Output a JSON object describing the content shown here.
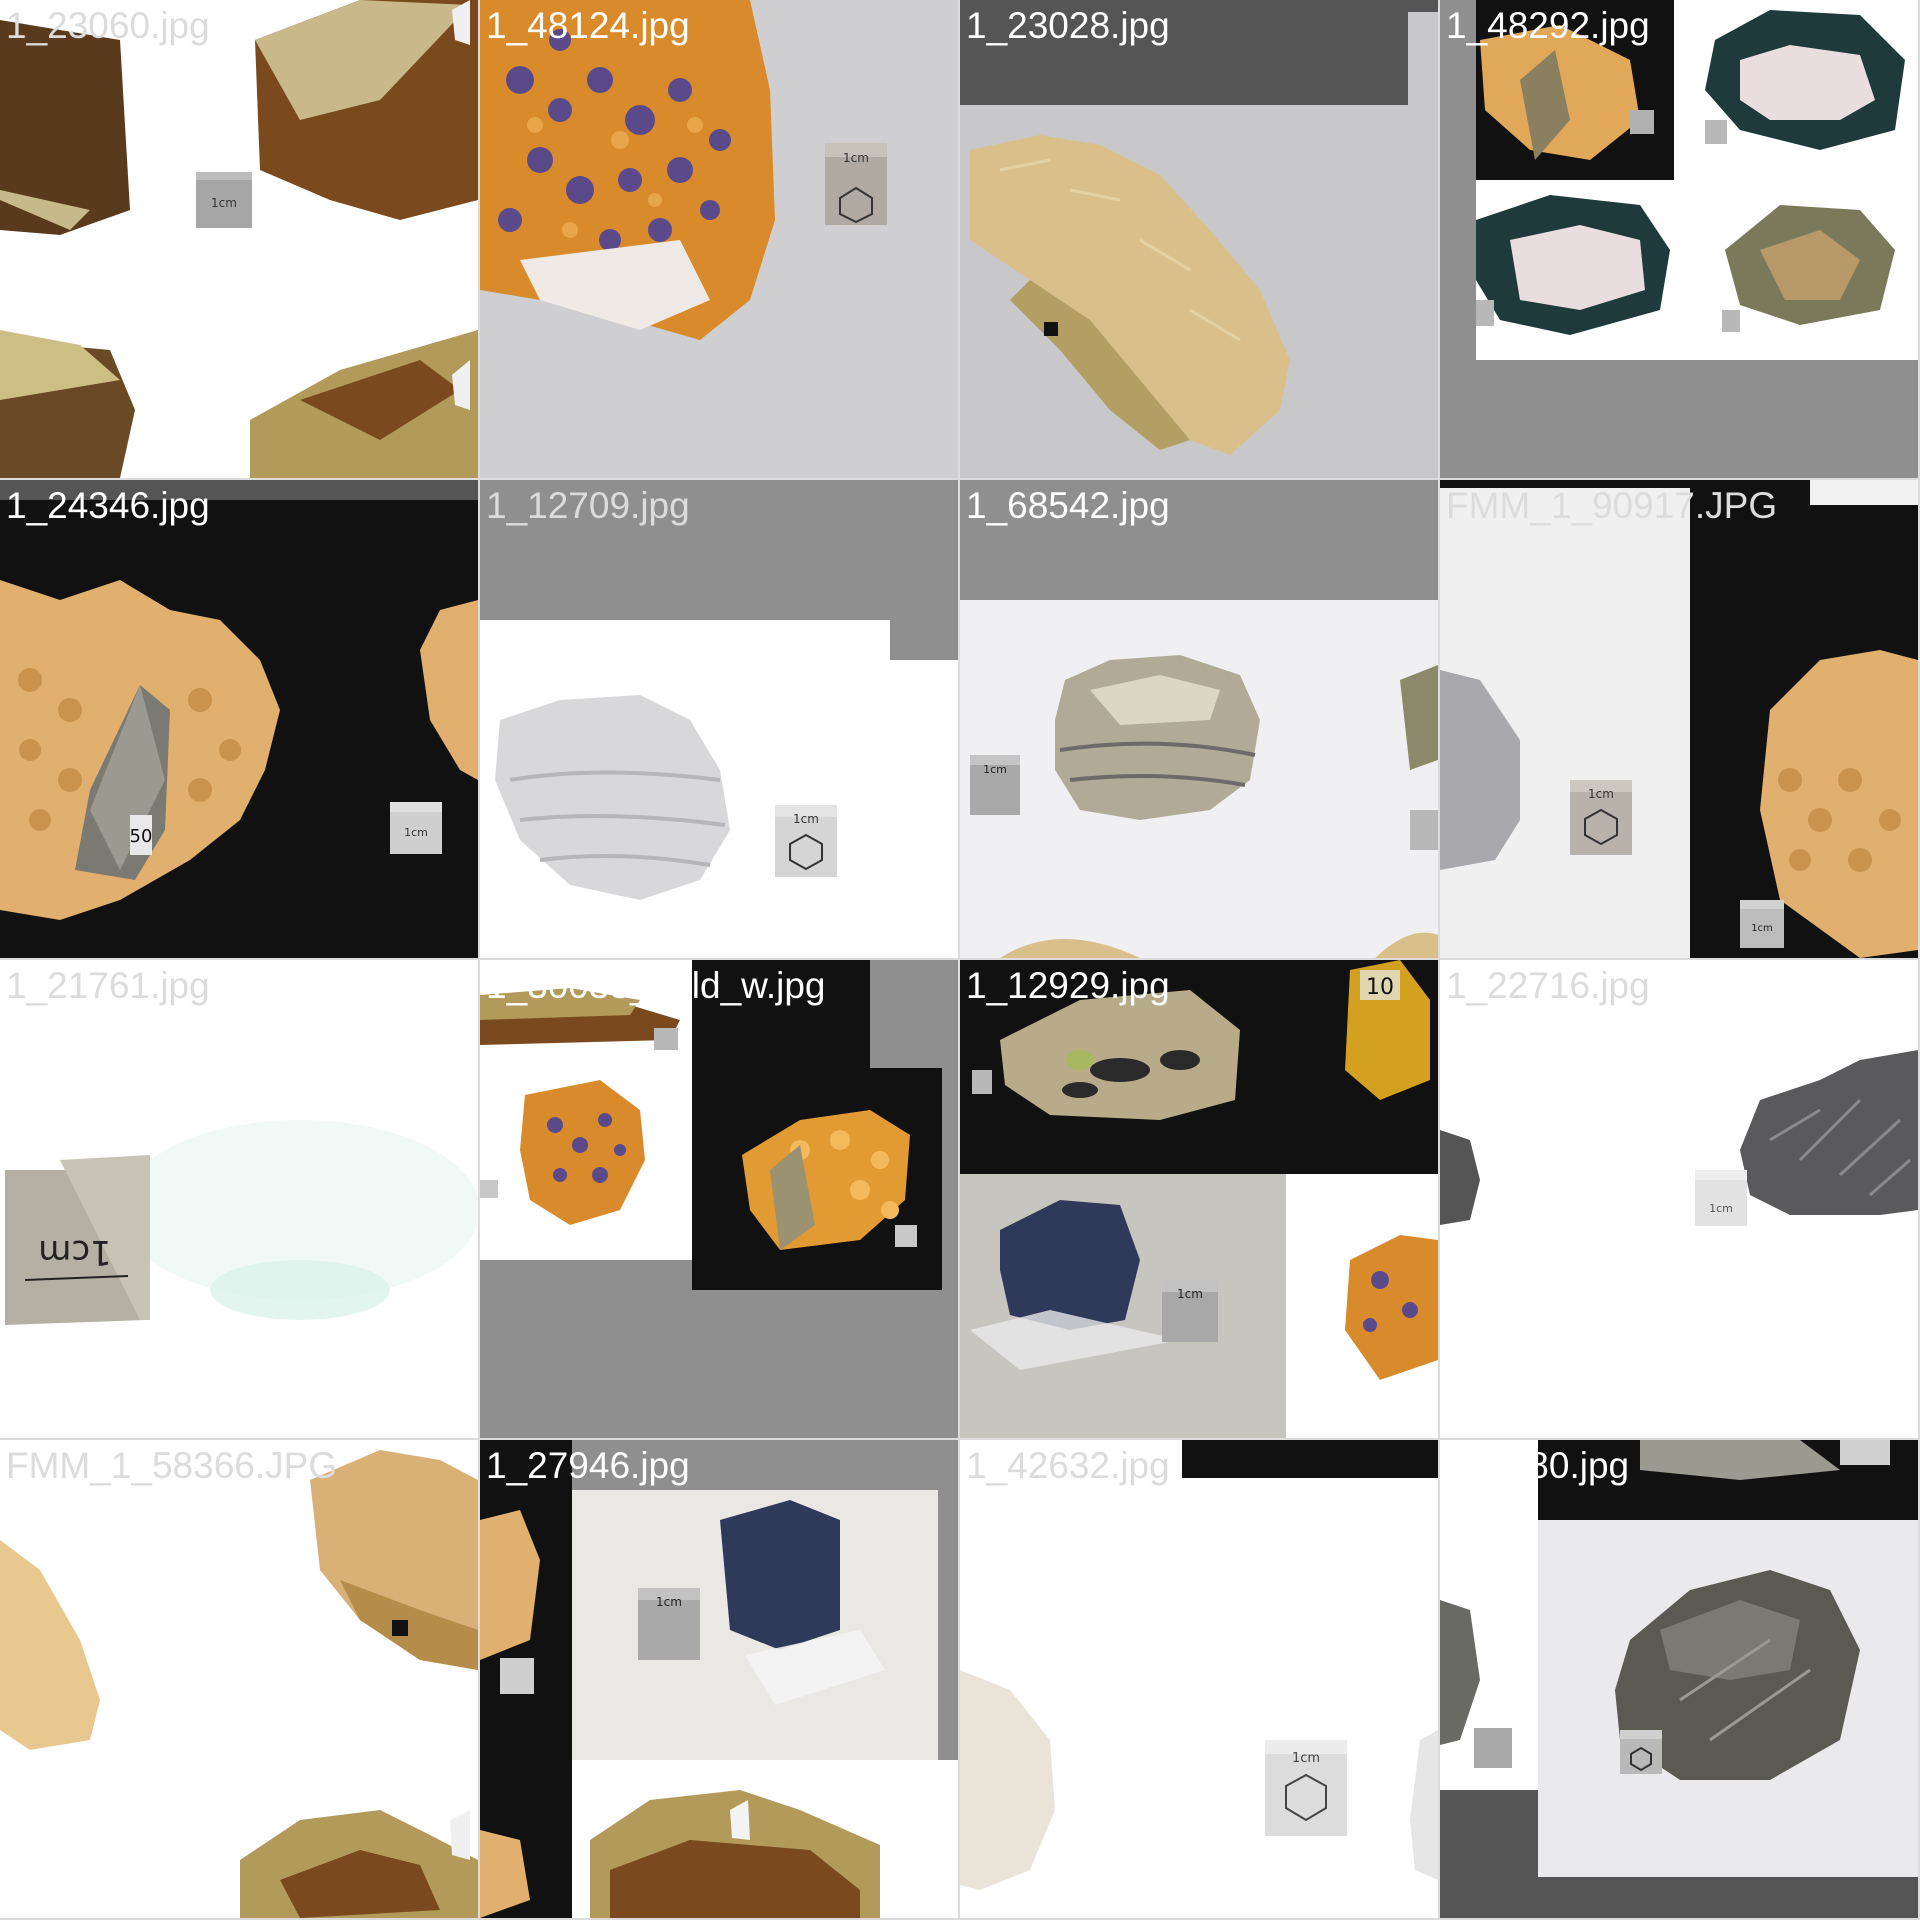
{
  "tiles": [
    {
      "filename": "1_23060.jpg",
      "label_tone": "light"
    },
    {
      "filename": "1_48124.jpg",
      "label_tone": "white"
    },
    {
      "filename": "1_23028.jpg",
      "label_tone": "white"
    },
    {
      "filename": "1_48292.jpg",
      "label_tone": "white"
    },
    {
      "filename": "1_24346.jpg",
      "label_tone": "white"
    },
    {
      "filename": "1_12709.jpg",
      "label_tone": "light"
    },
    {
      "filename": "1_68542.jpg",
      "label_tone": "white"
    },
    {
      "filename": "FMM_1_90917.JPG",
      "label_tone": "light"
    },
    {
      "filename": "1_21761.jpg",
      "label_tone": "light"
    },
    {
      "filename": "1_30033_gold_w.jpg",
      "label_tone": "white"
    },
    {
      "filename": "1_12929.jpg",
      "label_tone": "white"
    },
    {
      "filename": "1_22716.jpg",
      "label_tone": "light"
    },
    {
      "filename": "FMM_1_58366.JPG",
      "label_tone": "light"
    },
    {
      "filename": "1_27946.jpg",
      "label_tone": "white"
    },
    {
      "filename": "1_42632.jpg",
      "label_tone": "light"
    },
    {
      "filename": "1_1580.jpg",
      "label_tone": "white"
    }
  ],
  "scale_cube_label": "1cm",
  "specimen_tags": [
    "50",
    "10"
  ],
  "colors": {
    "white_bg": "#ffffff",
    "light_gray_bg": "#c8c8ca",
    "mid_gray_pad": "#8f8f8f",
    "dark_gray_pad": "#555555",
    "black_bg": "#111111",
    "ochre_rock": "#7a4a1e",
    "orange_crystal": "#d98a2b",
    "purple_crystal": "#5b4a8a",
    "calcite": "#d9c08a",
    "gold": "#d4a020"
  }
}
